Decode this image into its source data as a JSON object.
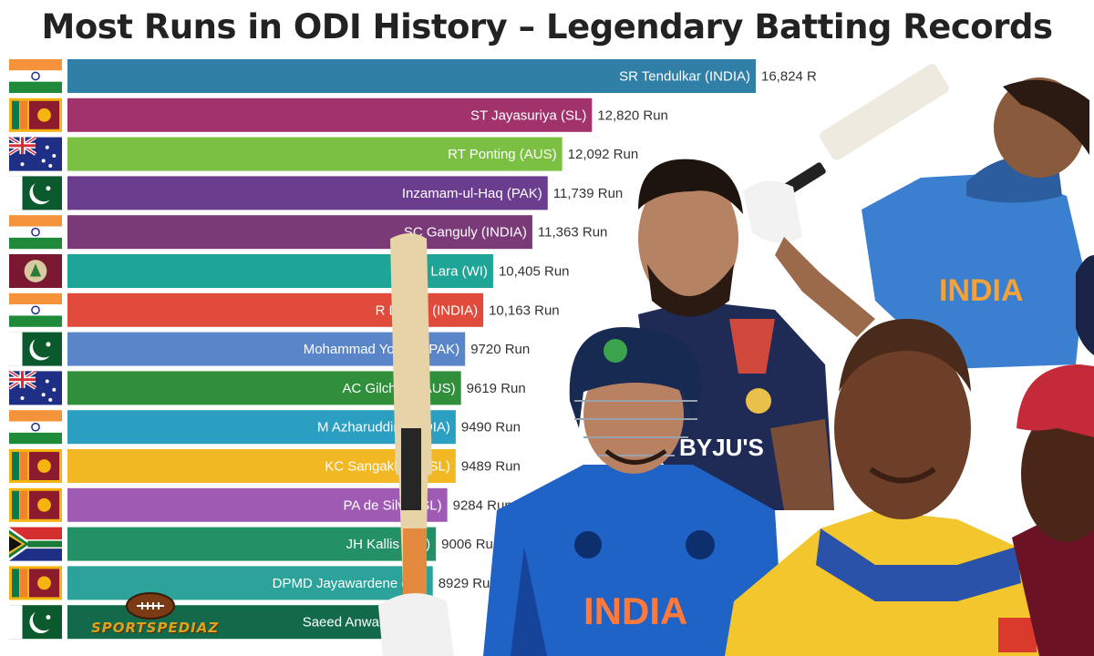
{
  "title": "Most Runs in ODI History – Legendary Batting Records",
  "logo": {
    "text": "SPORTSPEDIAZ"
  },
  "chart_data": {
    "type": "bar",
    "orientation": "horizontal",
    "title": "Most Runs in ODI History – Legendary Batting Records",
    "categories": [
      "SR Tendulkar (INDIA)",
      "ST Jayasuriya (SL)",
      "RT Ponting (AUS)",
      "Inzamam-ul-Haq (PAK)",
      "SC Ganguly (INDIA)",
      "BC Lara (WI)",
      "R Dravid (INDIA)",
      "Mohammad Yousuf (PAK)",
      "AC Gilchrist (AUS)",
      "M Azharuddin (INDIA)",
      "KC Sangakkara (SL)",
      "PA de Silva (SL)",
      "JH Kallis (SA)",
      "DPMD Jayawardene (SL)",
      "Saeed Anwar (PAK)"
    ],
    "values": [
      16824,
      12820,
      12092,
      11739,
      11363,
      10405,
      10163,
      9720,
      9619,
      9490,
      9489,
      9284,
      9006,
      8929,
      8824
    ],
    "value_labels": [
      "16,824 R",
      "12,820 Run",
      "12,092 Run",
      "11,739 Run",
      "11,363 Run",
      "10,405 Run",
      "10,163 Run",
      "9720 Run",
      "9619 Run",
      "9490 Run",
      "9489 Run",
      "9284 Run",
      "9006 Run",
      "8929 Ru",
      ""
    ],
    "flags": [
      "india",
      "sri-lanka",
      "australia",
      "pakistan",
      "india",
      "west-indies",
      "india",
      "pakistan",
      "australia",
      "india",
      "sri-lanka",
      "sri-lanka",
      "south-africa",
      "sri-lanka",
      "pakistan"
    ],
    "colors": [
      "#2f7fa6",
      "#a1326b",
      "#7cc043",
      "#6b3d8f",
      "#7a3a78",
      "#1fa597",
      "#e14b3b",
      "#5a86c9",
      "#2f8f3b",
      "#2a9fc1",
      "#f2b824",
      "#9f5ab4",
      "#239065",
      "#2ba29a",
      "#136a4b"
    ],
    "xlim": [
      0,
      17500
    ],
    "grid": false,
    "legend": "none"
  }
}
